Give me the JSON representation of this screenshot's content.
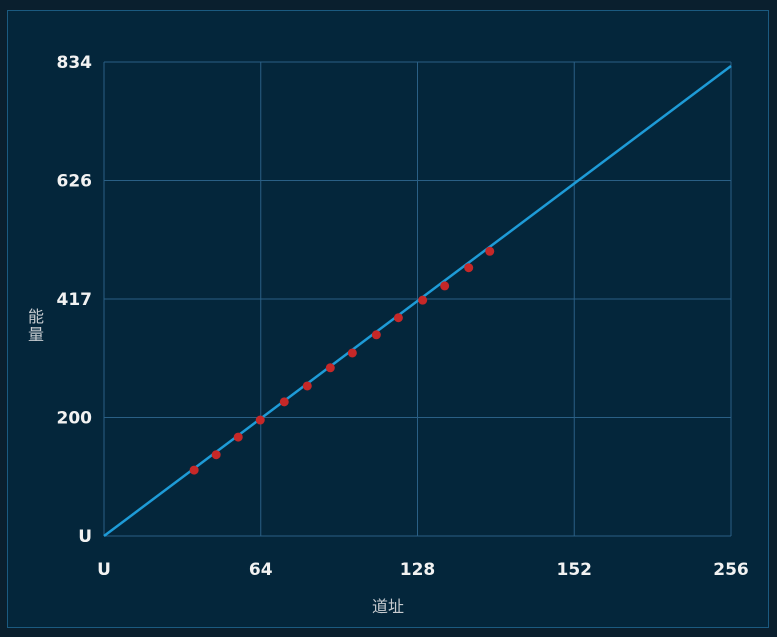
{
  "chart_data": {
    "type": "scatter",
    "title": "",
    "xlabel": "道址",
    "ylabel": "能量",
    "xlim": [
      0,
      256
    ],
    "ylim": [
      0,
      834
    ],
    "x_tick_labels": [
      "U",
      "64",
      "128",
      "152",
      "256"
    ],
    "y_tick_labels": [
      "U",
      "200",
      "417",
      "626",
      "834"
    ],
    "grid": true,
    "series": [
      {
        "type": "line",
        "x": [
          0,
          256
        ],
        "y": [
          0,
          827
        ]
      },
      {
        "type": "scatter",
        "x": [
          36.8,
          45.8,
          54.8,
          63.8,
          73.6,
          83.0,
          92.4,
          101.4,
          111.2,
          120.2,
          130.1,
          139.1,
          148.9,
          157.5
        ],
        "y": [
          116,
          143,
          174,
          204,
          236,
          264,
          296,
          322,
          354,
          384,
          415,
          440,
          472,
          501
        ]
      }
    ],
    "colors": {
      "background": "#04263b",
      "grid": "#2a5f85",
      "line": "#1e9bd7",
      "points": "#c62828",
      "text": "#f2f2f2"
    }
  }
}
